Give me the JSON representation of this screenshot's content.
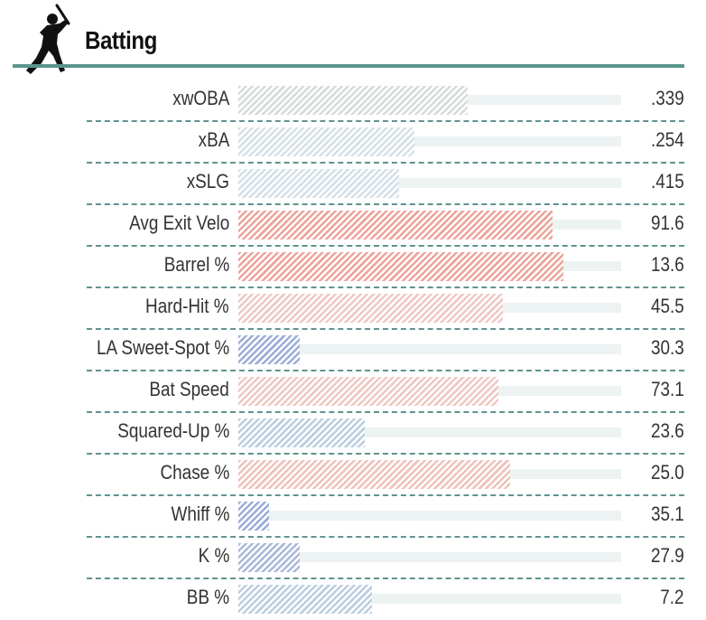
{
  "section": {
    "title": "Batting",
    "icon": "batter-silhouette-icon"
  },
  "colors": {
    "accent": "#5a958f",
    "track": "#edf2f2",
    "neutral": "#d7dcd8",
    "cool": "#bccde0",
    "cool_strong": "#9cadd7",
    "warm": "#efc8c4",
    "warm_strong": "#eca49a"
  },
  "chart_data": {
    "type": "bar",
    "orientation": "horizontal",
    "title": "Batting",
    "xlim": [
      0,
      100
    ],
    "grid": false,
    "categories": [
      "xwOBA",
      "xBA",
      "xSLG",
      "Avg Exit Velo",
      "Barrel %",
      "Hard-Hit %",
      "LA Sweet-Spot %",
      "Bat Speed",
      "Squared-Up %",
      "Chase %",
      "Whiff %",
      "K %",
      "BB %"
    ],
    "percentiles": [
      60,
      46,
      42,
      82,
      85,
      69,
      16,
      68,
      33,
      71,
      8,
      16,
      35
    ],
    "value_labels": [
      ".339",
      ".254",
      ".415",
      "91.6",
      "13.6",
      "45.5",
      "30.3",
      "73.1",
      "23.6",
      "25.0",
      "35.1",
      "27.9",
      "7.2"
    ],
    "bar_colors": [
      "#d7dcd8",
      "#d6e0e6",
      "#d5e0e8",
      "#eca49a",
      "#eca49a",
      "#efc8c4",
      "#9cadd7",
      "#efc8c4",
      "#bccde0",
      "#efc2bc",
      "#9cadd7",
      "#a9b8da",
      "#bccde0"
    ]
  }
}
